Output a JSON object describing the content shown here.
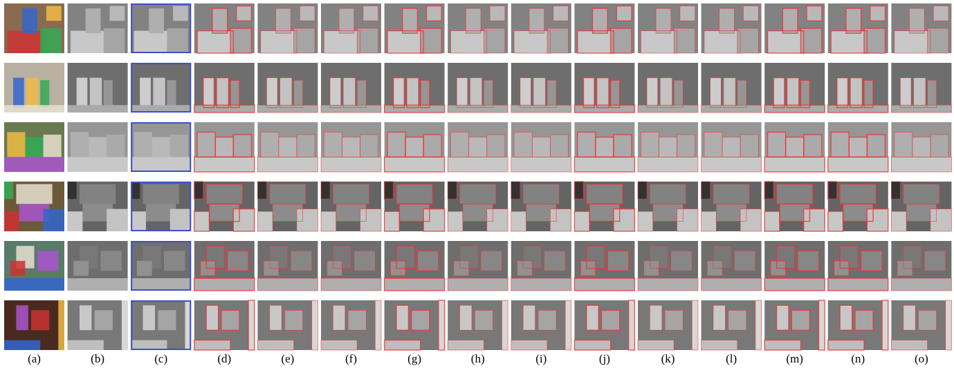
{
  "column_labels": [
    "(a)",
    "(b)",
    "(c)",
    "(d)",
    "(e)",
    "(f)",
    "(g)",
    "(h)",
    "(i)",
    "(j)",
    "(k)",
    "(l)",
    "(m)",
    "(n)",
    "(o)"
  ]
}
